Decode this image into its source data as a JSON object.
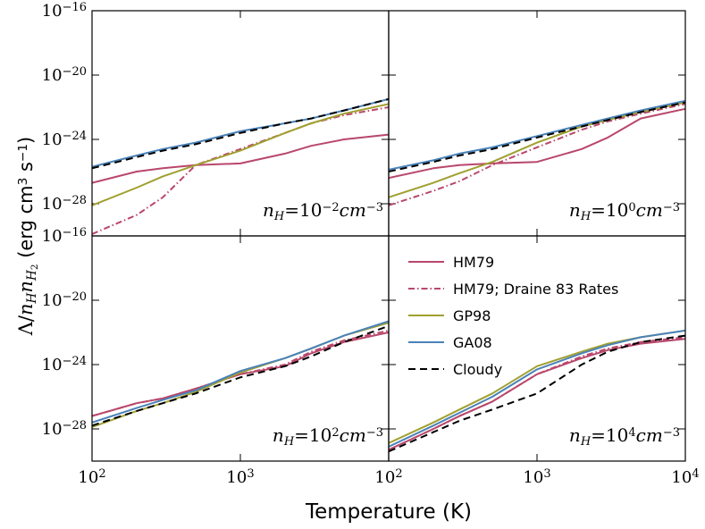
{
  "figure": {
    "xlabel": "Temperature (K)",
    "ylabel": [
      {
        "text": "Λ/",
        "font": "serif"
      },
      {
        "text": "n",
        "font": "serif",
        "italic": true
      },
      {
        "text": "H",
        "font": "serif",
        "italic": true,
        "shift": "sub"
      },
      {
        "text": "n",
        "font": "serif",
        "italic": true
      },
      {
        "text": "H",
        "font": "serif",
        "italic": true,
        "shift": "sub"
      },
      {
        "text": "2",
        "font": "serif",
        "shift": "subsub"
      },
      {
        "text": " (erg cm",
        "font": "sans"
      },
      {
        "text": "3",
        "font": "sans",
        "shift": "super"
      },
      {
        "text": " s",
        "font": "sans"
      },
      {
        "text": "−1",
        "font": "sans",
        "shift": "super"
      },
      {
        "text": ")",
        "font": "sans"
      }
    ]
  },
  "chart_data": [
    {
      "type": "line",
      "xlog": true,
      "ylog": true,
      "xlim": [
        100,
        10000
      ],
      "ylim": [
        1e-30,
        1e-16
      ],
      "xticks": [
        100,
        1000
      ],
      "xtick_labels": false,
      "yticks": [
        {
          "value": 1e-16,
          "label": "10",
          "exponent": "−16"
        },
        {
          "value": 1e-20,
          "label": "10",
          "exponent": "−20"
        },
        {
          "value": 1e-24,
          "label": "10",
          "exponent": "−24"
        },
        {
          "value": 1e-28,
          "label": "10",
          "exponent": "−28"
        }
      ],
      "ytick_labels": true,
      "annotation": [
        {
          "text": "n",
          "italic": true
        },
        {
          "text": "H",
          "italic": true,
          "shift": "sub"
        },
        {
          "text": "=10"
        },
        {
          "text": "−2",
          "shift": "super"
        },
        {
          "text": "cm",
          "italic": true
        },
        {
          "text": "−3",
          "shift": "super"
        }
      ],
      "x": [
        100,
        200,
        300,
        500,
        1000,
        2000,
        3000,
        5000,
        10000
      ],
      "series": [
        {
          "name": "HM79",
          "color": "#b9476b",
          "dash": "solid",
          "values": [
            2e-27,
            1e-26,
            1.6e-26,
            2.5e-26,
            3.2e-26,
            1.3e-25,
            4e-25,
            1e-24,
            2e-24
          ]
        },
        {
          "name": "HM79; Draine 83 Rates",
          "color": "#b9476b",
          "dash": "dashdot",
          "values": [
            1.3e-30,
            2e-29,
            2.5e-28,
            2.5e-26,
            2.5e-25,
            2.5e-24,
            1e-23,
            3.2e-23,
            1e-22
          ]
        },
        {
          "name": "GP98",
          "color": "#a0a030",
          "dash": "solid",
          "values": [
            7.9e-29,
            1e-27,
            5e-27,
            2.5e-26,
            2e-25,
            2.5e-24,
            1e-23,
            4e-23,
            1.6e-22
          ]
        },
        {
          "name": "GA08",
          "color": "#4a82b8",
          "dash": "solid",
          "values": [
            2e-26,
            1e-25,
            2.5e-25,
            6.3e-25,
            3.2e-24,
            1e-23,
            2e-23,
            6.3e-23,
            3.2e-22
          ]
        },
        {
          "name": "Cloudy",
          "color": "#000000",
          "dash": "dashed",
          "values": [
            1.6e-26,
            7.9e-26,
            2e-25,
            5e-25,
            2.5e-24,
            1e-23,
            2e-23,
            6.3e-23,
            3.2e-22
          ]
        }
      ]
    },
    {
      "type": "line",
      "xlog": true,
      "ylog": true,
      "xlim": [
        100,
        10000
      ],
      "ylim": [
        1e-30,
        1e-16
      ],
      "xticks": [
        100,
        1000
      ],
      "xtick_labels": false,
      "yticks": [
        1e-16,
        1e-20,
        1e-24,
        1e-28
      ],
      "ytick_labels": false,
      "annotation": [
        {
          "text": "n",
          "italic": true
        },
        {
          "text": "H",
          "italic": true,
          "shift": "sub"
        },
        {
          "text": "=10"
        },
        {
          "text": "0",
          "shift": "super"
        },
        {
          "text": "cm",
          "italic": true
        },
        {
          "text": "−3",
          "shift": "super"
        }
      ],
      "x": [
        100,
        200,
        300,
        500,
        1000,
        2000,
        3000,
        5000,
        10000
      ],
      "series": [
        {
          "name": "HM79",
          "color": "#b9476b",
          "dash": "solid",
          "values": [
            4e-27,
            1.6e-26,
            2.5e-26,
            3.2e-26,
            4e-26,
            2.5e-25,
            1.3e-24,
            2e-23,
            7.9e-23
          ]
        },
        {
          "name": "HM79; Draine 83 Rates",
          "color": "#b9476b",
          "dash": "dashdot",
          "values": [
            7.9e-29,
            6.3e-28,
            2.5e-27,
            2.5e-26,
            3.2e-25,
            4e-24,
            1.3e-23,
            4e-23,
            1.6e-22
          ]
        },
        {
          "name": "GP98",
          "color": "#a0a030",
          "dash": "solid",
          "values": [
            2.5e-28,
            2e-27,
            7.9e-27,
            4e-26,
            6.3e-25,
            6.3e-24,
            1.6e-23,
            5e-23,
            2e-22
          ]
        },
        {
          "name": "GA08",
          "color": "#4a82b8",
          "dash": "solid",
          "values": [
            1.3e-26,
            5e-26,
            1.3e-25,
            3.2e-25,
            1.6e-24,
            7.9e-24,
            2e-23,
            6.3e-23,
            2.5e-22
          ]
        },
        {
          "name": "Cloudy",
          "color": "#000000",
          "dash": "dashed",
          "values": [
            1e-26,
            4e-26,
            1e-25,
            2.5e-25,
            1.3e-24,
            6.3e-24,
            1.6e-23,
            5e-23,
            2e-22
          ]
        }
      ]
    },
    {
      "type": "line",
      "xlog": true,
      "ylog": true,
      "xlim": [
        100,
        10000
      ],
      "ylim": [
        1e-30,
        1e-16
      ],
      "xticks": [
        {
          "value": 100,
          "label": "10",
          "exponent": "2"
        },
        {
          "value": 1000,
          "label": "10",
          "exponent": "3"
        }
      ],
      "xtick_labels": true,
      "yticks": [
        {
          "value": 1e-16,
          "label": "10",
          "exponent": "−16"
        },
        {
          "value": 1e-20,
          "label": "10",
          "exponent": "−20"
        },
        {
          "value": 1e-24,
          "label": "10",
          "exponent": "−24"
        },
        {
          "value": 1e-28,
          "label": "10",
          "exponent": "−28"
        }
      ],
      "ytick_labels": true,
      "annotation": [
        {
          "text": "n",
          "italic": true
        },
        {
          "text": "H",
          "italic": true,
          "shift": "sub"
        },
        {
          "text": "=10"
        },
        {
          "text": "2",
          "shift": "super"
        },
        {
          "text": "cm",
          "italic": true
        },
        {
          "text": "−3",
          "shift": "super"
        }
      ],
      "x": [
        100,
        200,
        300,
        500,
        1000,
        2000,
        3000,
        5000,
        10000
      ],
      "series": [
        {
          "name": "HM79",
          "color": "#b9476b",
          "dash": "solid",
          "values": [
            6.3e-28,
            4e-27,
            7.9e-27,
            3.2e-26,
            2.5e-25,
            7.9e-25,
            5e-24,
            2.5e-23,
            1e-22
          ]
        },
        {
          "name": "HM79; Draine 83 Rates",
          "color": "#b9476b",
          "dash": "dashdot",
          "values": [
            6.3e-28,
            4e-27,
            7.9e-27,
            3.2e-26,
            2.5e-25,
            1e-24,
            6.3e-24,
            3.2e-23,
            1.3e-22
          ]
        },
        {
          "name": "GP98",
          "color": "#a0a030",
          "dash": "solid",
          "values": [
            1.3e-28,
            1.3e-27,
            4e-27,
            2e-26,
            3.2e-25,
            2.5e-24,
            1e-23,
            6.3e-23,
            4e-22
          ]
        },
        {
          "name": "GA08",
          "color": "#4a82b8",
          "dash": "solid",
          "values": [
            2.5e-28,
            2e-27,
            6.3e-27,
            2.5e-26,
            4e-25,
            2.5e-24,
            1e-23,
            6.3e-23,
            5e-22
          ]
        },
        {
          "name": "Cloudy",
          "color": "#000000",
          "dash": "dashed",
          "values": [
            1.6e-28,
            1.3e-27,
            4e-27,
            1.6e-26,
            1.6e-25,
            7.9e-25,
            3.2e-24,
            2.5e-23,
            2.5e-22
          ]
        }
      ]
    },
    {
      "type": "line",
      "xlog": true,
      "ylog": true,
      "xlim": [
        100,
        10000
      ],
      "ylim": [
        1e-30,
        1e-16
      ],
      "xticks": [
        {
          "value": 100,
          "label": "10",
          "exponent": "2"
        },
        {
          "value": 1000,
          "label": "10",
          "exponent": "3"
        },
        {
          "value": 10000,
          "label": "10",
          "exponent": "4"
        }
      ],
      "xtick_labels": true,
      "yticks": [
        1e-16,
        1e-20,
        1e-24,
        1e-28
      ],
      "ytick_labels": false,
      "legend": "upper left",
      "annotation": [
        {
          "text": "n",
          "italic": true
        },
        {
          "text": "H",
          "italic": true,
          "shift": "sub"
        },
        {
          "text": "=10"
        },
        {
          "text": "4",
          "shift": "super"
        },
        {
          "text": "cm",
          "italic": true
        },
        {
          "text": "−3",
          "shift": "super"
        }
      ],
      "x": [
        100,
        200,
        300,
        500,
        1000,
        2000,
        3000,
        5000,
        10000
      ],
      "series": [
        {
          "name": "HM79",
          "color": "#b9476b",
          "dash": "solid",
          "values": [
            5e-30,
            1e-28,
            6.3e-28,
            5e-27,
            2.5e-25,
            2.5e-24,
            7.9e-24,
            2e-23,
            4e-23
          ]
        },
        {
          "name": "HM79; Draine 83 Rates",
          "color": "#b9476b",
          "dash": "dashdot",
          "values": [
            5e-30,
            1e-28,
            6.3e-28,
            5e-27,
            2.5e-25,
            3.2e-24,
            1e-23,
            2.5e-23,
            5e-23
          ]
        },
        {
          "name": "GP98",
          "color": "#a0a030",
          "dash": "solid",
          "values": [
            1.3e-29,
            2.5e-28,
            1.6e-27,
            1.6e-26,
            7.9e-25,
            6.3e-24,
            2e-23,
            5e-23,
            1.3e-22
          ]
        },
        {
          "name": "GA08",
          "color": "#4a82b8",
          "dash": "solid",
          "values": [
            7.9e-30,
            1.6e-28,
            1e-27,
            1e-26,
            5e-25,
            5e-24,
            1.6e-23,
            5e-23,
            1.3e-22
          ]
        },
        {
          "name": "Cloudy",
          "color": "#000000",
          "dash": "dashed",
          "values": [
            4e-30,
            6.3e-29,
            3.2e-28,
            1.6e-27,
            1.6e-26,
            1e-24,
            6.3e-24,
            2.5e-23,
            6.3e-23
          ]
        }
      ]
    }
  ]
}
